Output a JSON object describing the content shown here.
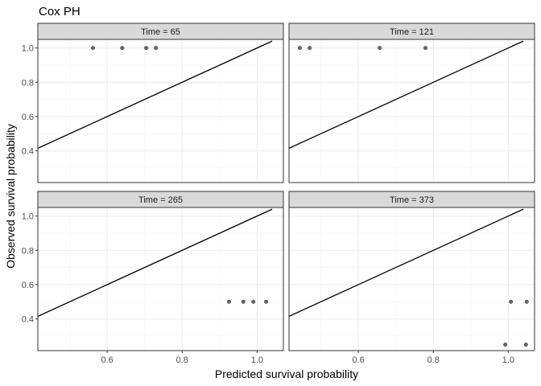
{
  "chart_data": {
    "type": "scatter",
    "title": "Cox PH",
    "xlabel": "Predicted survival probability",
    "ylabel": "Observed survival probability",
    "xlim": [
      0.415,
      1.07
    ],
    "ylim": [
      0.215,
      1.05
    ],
    "x_ticks": [
      0.6,
      0.8,
      1.0
    ],
    "x_tick_labels": [
      "0.6",
      "0.8",
      "1.0"
    ],
    "y_ticks": [
      0.4,
      0.6,
      0.8,
      1.0
    ],
    "y_tick_labels": [
      "0.4",
      "0.6",
      "0.8",
      "1.0"
    ],
    "reference_line": {
      "from": [
        0.415,
        0.415
      ],
      "to": [
        1.04,
        1.04
      ]
    },
    "grid": true,
    "panels": [
      {
        "label": "Time = 65",
        "points": [
          [
            0.562,
            1.0
          ],
          [
            0.64,
            1.0
          ],
          [
            0.704,
            1.0
          ],
          [
            0.73,
            1.0
          ]
        ]
      },
      {
        "label": "Time = 121",
        "points": [
          [
            0.444,
            1.0
          ],
          [
            0.47,
            1.0
          ],
          [
            0.657,
            1.0
          ],
          [
            0.779,
            1.0
          ]
        ]
      },
      {
        "label": "Time = 265",
        "points": [
          [
            0.925,
            0.5
          ],
          [
            0.963,
            0.5
          ],
          [
            0.99,
            0.5
          ],
          [
            1.024,
            0.5
          ]
        ]
      },
      {
        "label": "Time = 373",
        "points": [
          [
            1.007,
            0.5
          ],
          [
            1.049,
            0.5
          ],
          [
            0.992,
            0.25
          ],
          [
            1.047,
            0.25
          ]
        ]
      }
    ]
  }
}
